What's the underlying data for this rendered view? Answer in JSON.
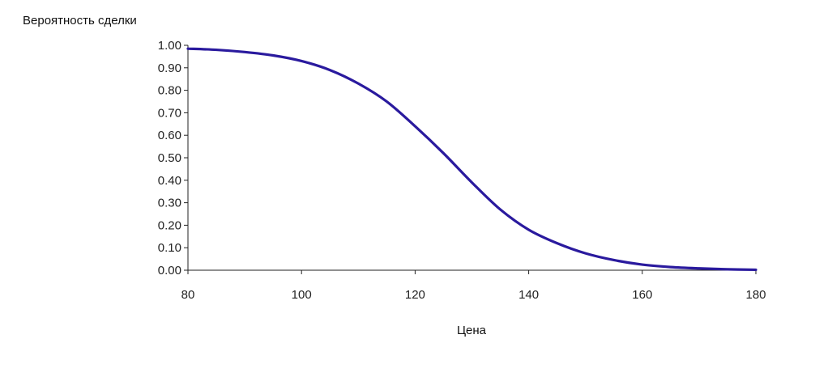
{
  "chart_data": {
    "type": "line",
    "title": "",
    "xlabel": "Цена",
    "ylabel": "Вероятность сделки",
    "xlim": [
      80,
      180
    ],
    "ylim": [
      0,
      1
    ],
    "x_ticks": [
      "80",
      "100",
      "120",
      "140",
      "160",
      "180"
    ],
    "x_tick_values": [
      80,
      100,
      120,
      140,
      160,
      180
    ],
    "y_ticks": [
      "0.00",
      "0.10",
      "0.20",
      "0.30",
      "0.40",
      "0.50",
      "0.60",
      "0.70",
      "0.80",
      "0.90",
      "1.00"
    ],
    "y_tick_values": [
      0,
      0.1,
      0.2,
      0.3,
      0.4,
      0.5,
      0.6,
      0.7,
      0.8,
      0.9,
      1.0
    ],
    "grid": false,
    "legend": "none",
    "series": [
      {
        "color": "#2a1a9e",
        "x": [
          80,
          85,
          90,
          95,
          100,
          105,
          110,
          115,
          120,
          125,
          130,
          135,
          140,
          145,
          150,
          155,
          160,
          165,
          170,
          175,
          180
        ],
        "y": [
          0.985,
          0.98,
          0.97,
          0.955,
          0.93,
          0.89,
          0.83,
          0.75,
          0.64,
          0.52,
          0.39,
          0.27,
          0.18,
          0.12,
          0.075,
          0.045,
          0.025,
          0.014,
          0.008,
          0.004,
          0.002
        ]
      }
    ]
  }
}
